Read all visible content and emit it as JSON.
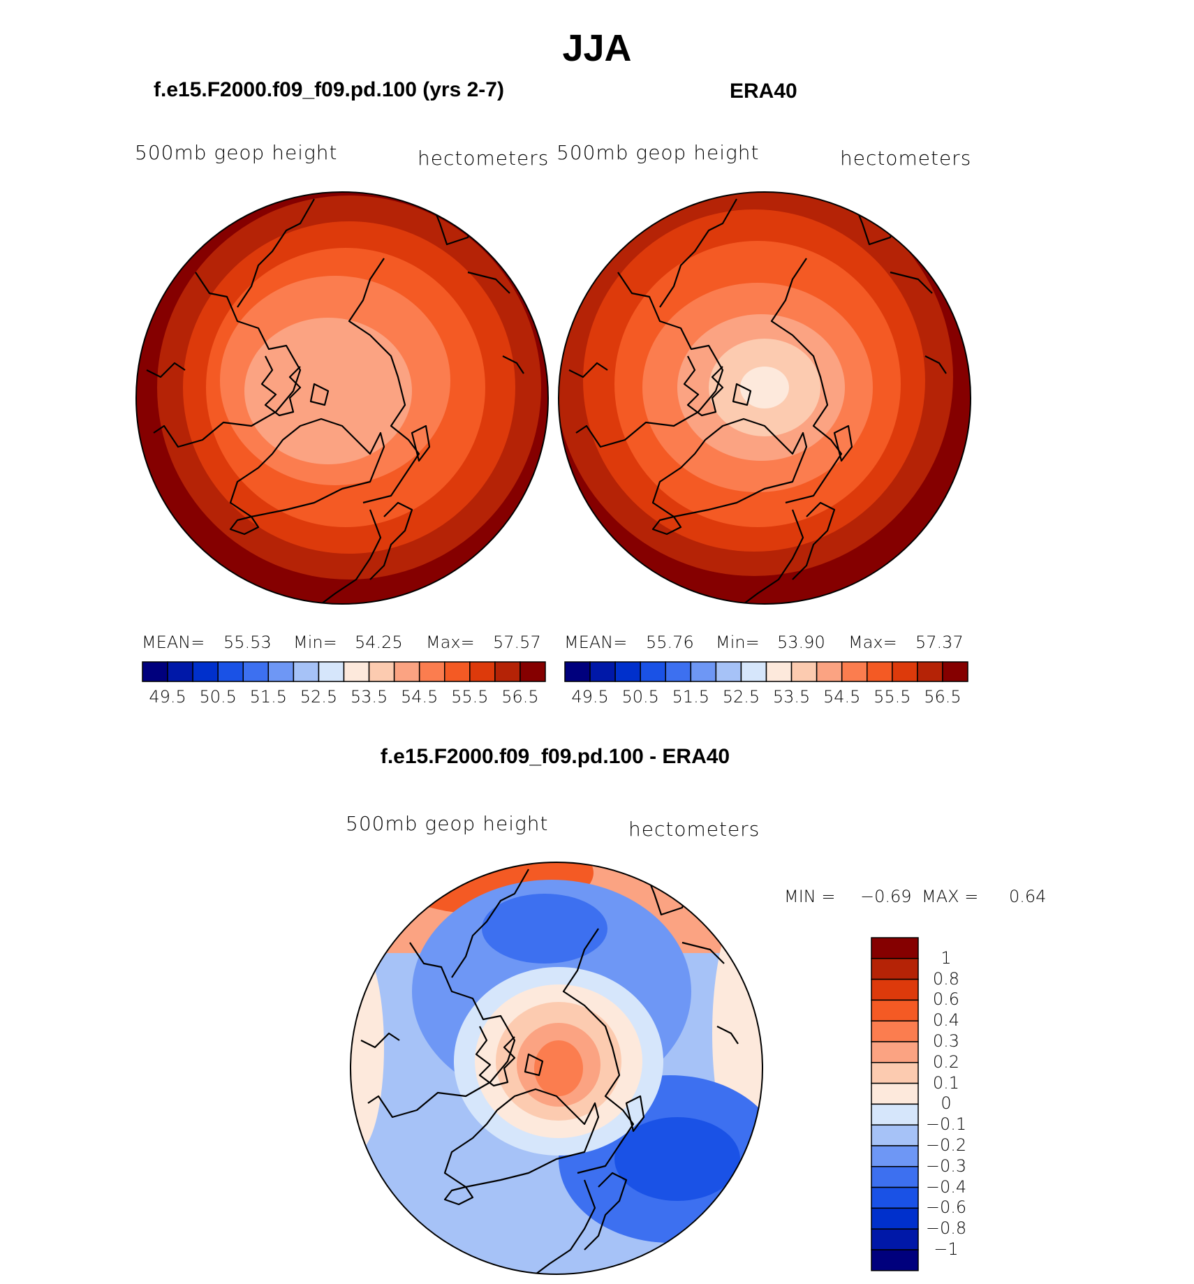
{
  "title": "JJA",
  "panels": {
    "model": {
      "title": "f.e15.F2000.f09_f09.pd.100 (yrs 2-7)",
      "left_label": "500mb  geop  height",
      "right_label": "hectometers",
      "stats": {
        "mean_label": "MEAN=",
        "mean": "55.53",
        "min_label": "Min=",
        "min": "54.25",
        "max_label": "Max=",
        "max": "57.57"
      }
    },
    "obs": {
      "title": "ERA40",
      "left_label": "500mb  geop  height",
      "right_label": "hectometers",
      "stats": {
        "mean_label": "MEAN=",
        "mean": "55.76",
        "min_label": "Min=",
        "min": "53.90",
        "max_label": "Max=",
        "max": "57.37"
      }
    },
    "diff": {
      "title": "f.e15.F2000.f09_f09.pd.100 - ERA40",
      "left_label": "500mb  geop  height",
      "right_label": "hectometers",
      "minmax": {
        "min_label": "MIN =",
        "min": "−0.69",
        "max_label": "MAX =",
        "max": "0.64"
      }
    }
  },
  "horizontal_colorbar": {
    "colors": [
      "#00007d",
      "#0018a8",
      "#0030cc",
      "#1a52e6",
      "#3d70f0",
      "#6e97f5",
      "#a6c2f7",
      "#d6e6fb",
      "#fde9dc",
      "#fccbb0",
      "#fba382",
      "#fb7d4f",
      "#f45a24",
      "#dd3a0b",
      "#b52306",
      "#850000"
    ],
    "tick_labels": [
      "49.5",
      "50.5",
      "51.5",
      "52.5",
      "53.5",
      "54.5",
      "55.5",
      "56.5"
    ]
  },
  "vertical_colorbar": {
    "colors": [
      "#850000",
      "#b52306",
      "#dd3a0b",
      "#f45a24",
      "#fb7d4f",
      "#fba382",
      "#fccbb0",
      "#fde9dc",
      "#d6e6fb",
      "#a6c2f7",
      "#6e97f5",
      "#3d70f0",
      "#1a52e6",
      "#0030cc",
      "#0018a8",
      "#00007d"
    ],
    "tick_labels": [
      "1",
      "0.8",
      "0.6",
      "0.4",
      "0.3",
      "0.2",
      "0.1",
      "0",
      "−0.1",
      "−0.2",
      "−0.3",
      "−0.4",
      "−0.6",
      "−0.8",
      "−1"
    ]
  }
}
